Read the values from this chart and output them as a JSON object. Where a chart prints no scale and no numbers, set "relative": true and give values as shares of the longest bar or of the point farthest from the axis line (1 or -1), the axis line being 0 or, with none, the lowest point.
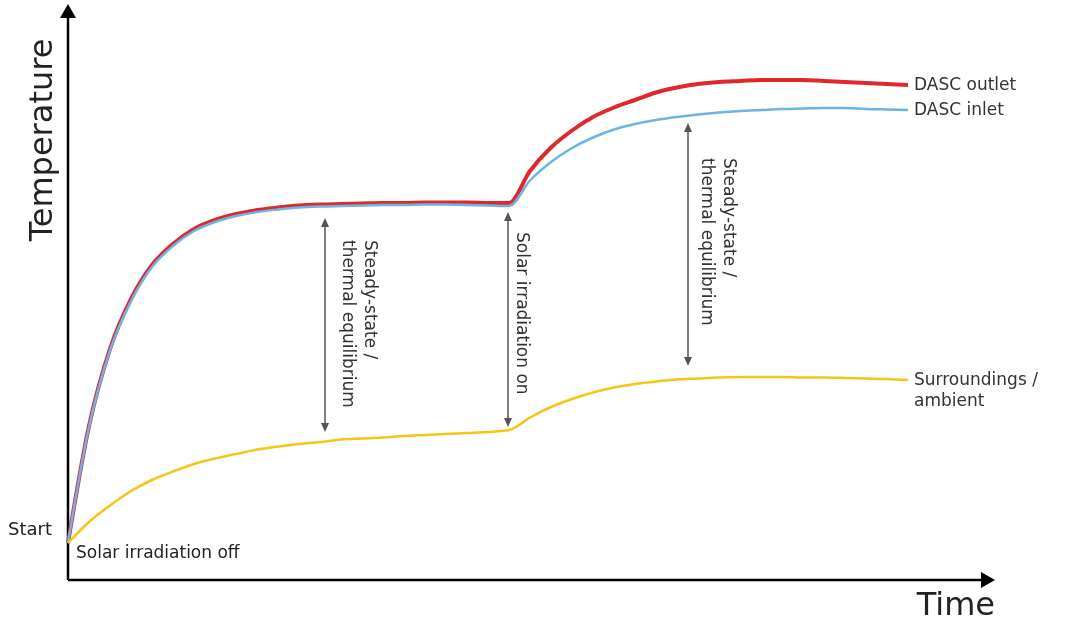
{
  "chart_data": {
    "type": "line",
    "relative": true,
    "xlabel": "Time",
    "ylabel": "Temperature",
    "categories": [
      null,
      null,
      null,
      null,
      null,
      null,
      null,
      null,
      null,
      null,
      null,
      null,
      null,
      null,
      null,
      null,
      null,
      null,
      null,
      null,
      null,
      null,
      null,
      null,
      null,
      null,
      null,
      null,
      null,
      null,
      null,
      null,
      null,
      null,
      null,
      null,
      null,
      null,
      null,
      null,
      null
    ],
    "series": [
      {
        "name": "DASC outlet",
        "color": "#e0282c",
        "values": [
          0.074,
          0.308,
          0.462,
          0.562,
          0.63,
          0.672,
          0.702,
          0.72,
          0.732,
          0.74,
          0.745,
          0.749,
          0.751,
          0.752,
          0.753,
          0.754,
          0.754,
          0.755,
          0.755,
          0.755,
          0.754,
          0.754,
          0.818,
          0.865,
          0.899,
          0.926,
          0.945,
          0.96,
          0.975,
          0.985,
          0.992,
          0.996,
          0.998,
          1,
          1,
          1,
          0.998,
          0.996,
          0.994,
          0.992,
          0.99
        ]
      },
      {
        "name": "DASC inlet",
        "color": "#6cb4e4",
        "values": [
          0.074,
          0.306,
          0.459,
          0.558,
          0.626,
          0.668,
          0.698,
          0.716,
          0.728,
          0.736,
          0.741,
          0.745,
          0.747,
          0.748,
          0.749,
          0.75,
          0.75,
          0.751,
          0.751,
          0.75,
          0.749,
          0.748,
          0.799,
          0.836,
          0.864,
          0.885,
          0.901,
          0.912,
          0.92,
          0.926,
          0.931,
          0.935,
          0.938,
          0.94,
          0.942,
          0.943,
          0.944,
          0.944,
          0.942,
          0.941,
          0.94
        ]
      },
      {
        "name": "Surroundings /\nambient",
        "color": "#f5c518",
        "values": [
          0.074,
          0.116,
          0.149,
          0.178,
          0.2,
          0.217,
          0.232,
          0.243,
          0.252,
          0.261,
          0.267,
          0.272,
          0.276,
          0.281,
          0.283,
          0.285,
          0.288,
          0.29,
          0.292,
          0.294,
          0.296,
          0.3,
          0.325,
          0.346,
          0.362,
          0.375,
          0.385,
          0.392,
          0.397,
          0.401,
          0.403,
          0.405,
          0.406,
          0.406,
          0.406,
          0.405,
          0.405,
          0.404,
          0.403,
          0.402,
          0.4
        ]
      }
    ],
    "annotations": [
      "Start",
      "Solar irradiation off",
      "Steady-state /\nthermal equilibrium",
      "Solar irradiation on",
      "Steady-state /\nthermal equilibrium"
    ]
  }
}
